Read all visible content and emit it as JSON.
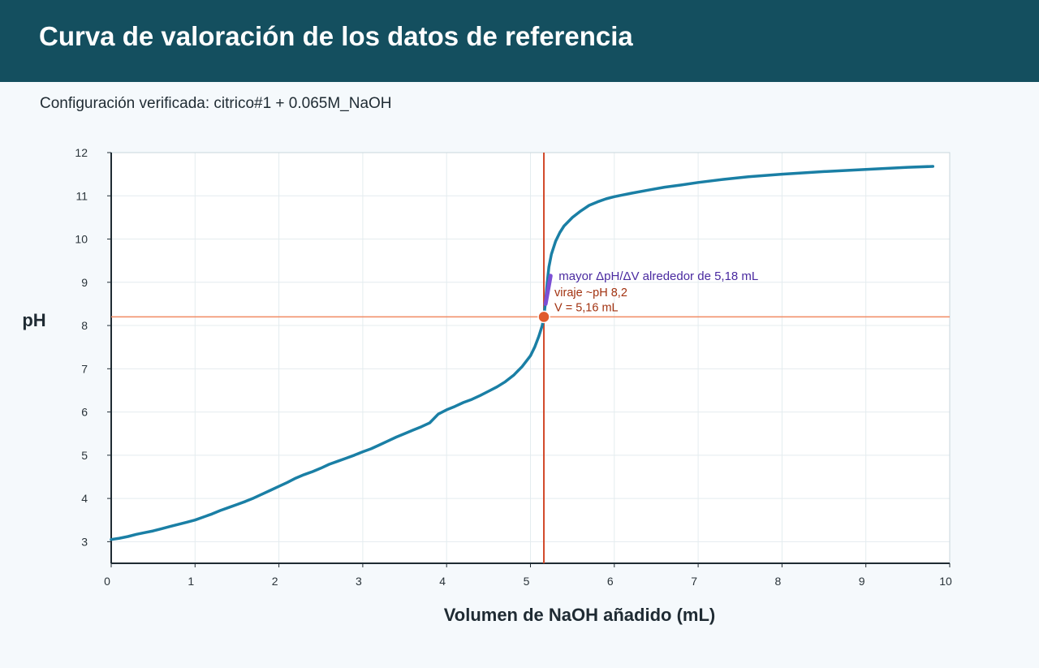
{
  "header": {
    "title": "Curva de valoración de los datos de referencia"
  },
  "subtitle": "Configuración verificada: citrico#1 + 0.065M_NaOH",
  "colors": {
    "header_bg": "#144f5f",
    "page_bg": "#f5f9fc",
    "curve": "#1a7fa5",
    "marker": "#e05a2c",
    "hline": "#f08a63",
    "vline": "#d2492a",
    "steep": "#7b4fd4",
    "steep_text": "#4a2aa0",
    "endpoint_text": "#a23210",
    "grid": "#e4ecef",
    "axis": "#1f2b33"
  },
  "chart_data": {
    "type": "line",
    "xlabel": "Volumen de NaOH añadido (mL)",
    "ylabel": "pH",
    "xlim": [
      0,
      10
    ],
    "ylim": [
      2.5,
      12
    ],
    "xticks": [
      0,
      1,
      2,
      3,
      4,
      5,
      6,
      7,
      8,
      9,
      10
    ],
    "yticks": [
      3,
      4,
      5,
      6,
      7,
      8,
      9,
      10,
      11,
      12
    ],
    "grid": true,
    "series": [
      {
        "x": [
          0.0,
          0.1,
          0.2,
          0.3,
          0.4,
          0.5,
          0.6,
          0.7,
          0.8,
          0.9,
          1.0,
          1.1,
          1.2,
          1.3,
          1.4,
          1.5,
          1.6,
          1.7,
          1.8,
          1.9,
          2.0,
          2.1,
          2.2,
          2.3,
          2.4,
          2.5,
          2.6,
          2.7,
          2.8,
          2.9,
          3.0,
          3.1,
          3.2,
          3.3,
          3.4,
          3.5,
          3.6,
          3.7,
          3.8,
          3.9,
          4.0,
          4.1,
          4.2,
          4.3,
          4.4,
          4.5,
          4.6,
          4.7,
          4.8,
          4.9,
          5.0,
          5.05,
          5.1,
          5.14,
          5.16,
          5.18,
          5.2,
          5.22,
          5.25,
          5.3,
          5.35,
          5.4,
          5.5,
          5.6,
          5.7,
          5.8,
          5.9,
          6.0,
          6.2,
          6.4,
          6.6,
          6.8,
          7.0,
          7.3,
          7.6,
          8.0,
          8.5,
          9.0,
          9.5,
          9.8
        ],
        "y": [
          3.05,
          3.08,
          3.12,
          3.17,
          3.21,
          3.25,
          3.3,
          3.35,
          3.4,
          3.45,
          3.5,
          3.57,
          3.64,
          3.72,
          3.79,
          3.86,
          3.93,
          4.01,
          4.1,
          4.19,
          4.28,
          4.37,
          4.47,
          4.55,
          4.62,
          4.7,
          4.79,
          4.86,
          4.93,
          5.0,
          5.08,
          5.15,
          5.24,
          5.33,
          5.42,
          5.5,
          5.58,
          5.66,
          5.75,
          5.95,
          6.05,
          6.13,
          6.22,
          6.29,
          6.38,
          6.48,
          6.58,
          6.7,
          6.85,
          7.05,
          7.3,
          7.5,
          7.75,
          8.0,
          8.2,
          8.55,
          9.0,
          9.35,
          9.65,
          9.95,
          10.15,
          10.3,
          10.5,
          10.65,
          10.78,
          10.86,
          10.93,
          10.98,
          11.06,
          11.13,
          11.2,
          11.25,
          11.31,
          11.38,
          11.44,
          11.5,
          11.56,
          11.61,
          11.66,
          11.68
        ]
      }
    ],
    "endpoint": {
      "x": 5.16,
      "y": 8.2,
      "label_line1": "viraje ~pH 8,2",
      "label_line2": "V = 5,16 mL"
    },
    "steepest": {
      "x_from": 5.18,
      "x_to": 5.24,
      "y_from": 8.5,
      "y_to": 9.15,
      "label": "mayor ΔpH/ΔV alrededor de 5,18 mL"
    }
  }
}
